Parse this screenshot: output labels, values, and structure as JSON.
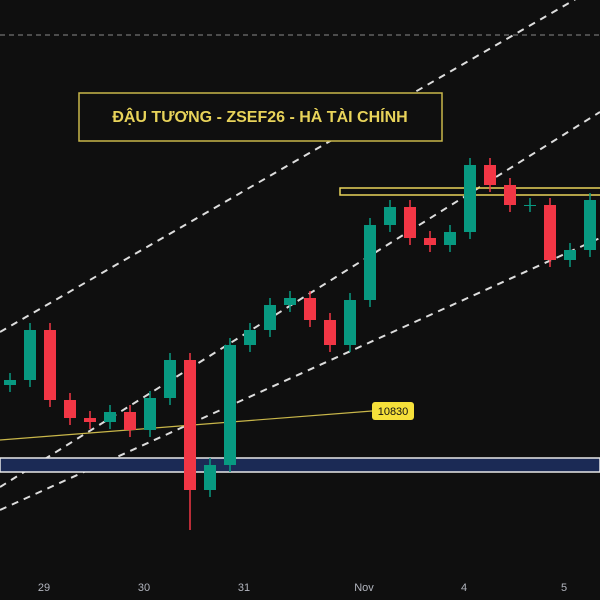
{
  "chart_data": {
    "type": "candlestick",
    "title": "ĐẬU TƯƠNG - ZSEF26 - HÀ TÀI CHÍNH",
    "annotation": {
      "value": 10830,
      "label": "10830"
    },
    "categories": [
      null,
      null,
      "29",
      null,
      null,
      null,
      null,
      "30",
      null,
      null,
      null,
      null,
      "31",
      null,
      null,
      null,
      null,
      null,
      "Nov",
      null,
      null,
      null,
      null,
      "4",
      null,
      null,
      null,
      null,
      "5",
      null
    ],
    "open": [
      10882,
      10892,
      10992,
      10852,
      10816,
      10808,
      10828,
      10792,
      10856,
      10932,
      10672,
      10722,
      10962,
      10992,
      11042,
      11056,
      11012,
      10962,
      11052,
      11202,
      11238,
      11176,
      11162,
      11188,
      11322,
      11282,
      11242,
      11242,
      11132,
      11152
    ],
    "high": [
      10906,
      11006,
      11006,
      10866,
      10830,
      10842,
      10842,
      10870,
      10946,
      10946,
      10736,
      10976,
      11006,
      11056,
      11070,
      11070,
      11026,
      11066,
      11216,
      11252,
      11252,
      11190,
      11202,
      11336,
      11336,
      11296,
      11256,
      11256,
      11166,
      11266
    ],
    "low": [
      10868,
      10878,
      10838,
      10802,
      10794,
      10794,
      10778,
      10778,
      10842,
      10592,
      10658,
      10708,
      10948,
      10978,
      11028,
      10998,
      10948,
      10948,
      11038,
      11188,
      11162,
      11148,
      11148,
      11174,
      11268,
      11228,
      11228,
      11118,
      11118,
      11138
    ],
    "close": [
      10892,
      10992,
      10852,
      10816,
      10808,
      10828,
      10792,
      10856,
      10932,
      10672,
      10722,
      10962,
      10992,
      11042,
      11056,
      11012,
      10962,
      11052,
      11202,
      11238,
      11176,
      11162,
      11188,
      11322,
      11282,
      11242,
      11242,
      11132,
      11152,
      11252
    ],
    "up_color": "#089981",
    "down_color": "#f23645",
    "ylim": [
      10512,
      11652
    ]
  }
}
